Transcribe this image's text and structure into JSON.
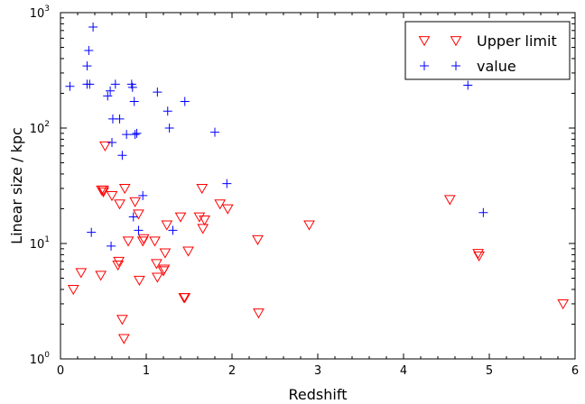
{
  "chart_data": {
    "type": "scatter",
    "title": "",
    "xlabel": "Redshift",
    "ylabel": "Linear size / kpc",
    "xlim": [
      0,
      6
    ],
    "ylim": [
      1,
      1000
    ],
    "yscale": "log",
    "grid": false,
    "legend_position": "top-right",
    "x_ticks": [
      "0",
      "1",
      "2",
      "3",
      "4",
      "5",
      "6"
    ],
    "y_ticks": [
      {
        "value": 1,
        "base": "10",
        "exp": "0"
      },
      {
        "value": 10,
        "base": "10",
        "exp": "1"
      },
      {
        "value": 100,
        "base": "10",
        "exp": "2"
      },
      {
        "value": 1000,
        "base": "10",
        "exp": "3"
      }
    ],
    "series": [
      {
        "name": "Upper limit",
        "marker": "triangle-down",
        "color": "#ff0000",
        "points": [
          [
            0.15,
            4.0
          ],
          [
            0.24,
            5.6
          ],
          [
            0.47,
            5.3
          ],
          [
            0.48,
            29
          ],
          [
            0.5,
            29
          ],
          [
            0.52,
            70
          ],
          [
            0.5,
            28
          ],
          [
            0.6,
            26
          ],
          [
            0.67,
            6.5
          ],
          [
            0.68,
            7.0
          ],
          [
            0.69,
            22
          ],
          [
            0.72,
            2.2
          ],
          [
            0.74,
            1.5
          ],
          [
            0.75,
            30
          ],
          [
            0.79,
            10.5
          ],
          [
            0.87,
            23
          ],
          [
            0.91,
            18
          ],
          [
            0.92,
            4.8
          ],
          [
            0.96,
            10.5
          ],
          [
            0.97,
            11
          ],
          [
            1.1,
            10.5
          ],
          [
            1.12,
            6.7
          ],
          [
            1.13,
            5.1
          ],
          [
            1.2,
            5.8
          ],
          [
            1.21,
            6.0
          ],
          [
            1.22,
            8.3
          ],
          [
            1.24,
            14.5
          ],
          [
            1.4,
            17
          ],
          [
            1.44,
            3.4
          ],
          [
            1.45,
            3.4
          ],
          [
            1.49,
            8.6
          ],
          [
            1.62,
            17
          ],
          [
            1.65,
            30
          ],
          [
            1.66,
            13.5
          ],
          [
            1.68,
            16
          ],
          [
            1.86,
            22
          ],
          [
            1.95,
            20
          ],
          [
            2.3,
            10.8
          ],
          [
            2.31,
            2.5
          ],
          [
            2.9,
            14.5
          ],
          [
            4.54,
            24
          ],
          [
            4.87,
            8.2
          ],
          [
            4.88,
            7.8
          ],
          [
            5.86,
            3.0
          ]
        ]
      },
      {
        "name": "value",
        "marker": "plus",
        "color": "#0000ff",
        "points": [
          [
            0.11,
            230
          ],
          [
            0.31,
            345
          ],
          [
            0.31,
            240
          ],
          [
            0.33,
            470
          ],
          [
            0.34,
            240
          ],
          [
            0.36,
            12.5
          ],
          [
            0.38,
            750
          ],
          [
            0.55,
            190
          ],
          [
            0.58,
            210
          ],
          [
            0.59,
            9.5
          ],
          [
            0.6,
            75
          ],
          [
            0.61,
            120
          ],
          [
            0.64,
            240
          ],
          [
            0.69,
            120
          ],
          [
            0.72,
            58
          ],
          [
            0.77,
            88
          ],
          [
            0.83,
            240
          ],
          [
            0.84,
            225
          ],
          [
            0.85,
            17
          ],
          [
            0.86,
            170
          ],
          [
            0.87,
            88
          ],
          [
            0.89,
            90
          ],
          [
            0.91,
            13
          ],
          [
            0.96,
            26
          ],
          [
            1.13,
            205
          ],
          [
            1.25,
            140
          ],
          [
            1.27,
            100
          ],
          [
            1.31,
            13
          ],
          [
            1.45,
            170
          ],
          [
            1.8,
            92
          ],
          [
            1.94,
            33
          ],
          [
            4.75,
            235
          ],
          [
            4.93,
            18.5
          ]
        ]
      }
    ]
  }
}
